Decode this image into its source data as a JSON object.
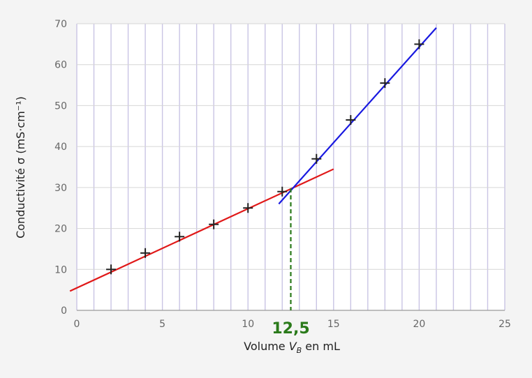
{
  "chart_data": {
    "type": "scatter",
    "title": "",
    "xlabel": "Volume V_B en mL",
    "xlabel_parts": {
      "main": "Volume ",
      "var": "V",
      "sub": "B",
      "tail": " en mL"
    },
    "ylabel": "Conductivité σ (mS·cm⁻¹)",
    "xlim": [
      0,
      25
    ],
    "ylim": [
      0,
      70
    ],
    "x_ticks": [
      0,
      5,
      10,
      15,
      20,
      25
    ],
    "y_ticks": [
      0,
      10,
      20,
      30,
      40,
      50,
      60,
      70
    ],
    "grid": "vertical every 1 mL, horizontal every 10 mS·cm⁻¹",
    "points": {
      "x": [
        2,
        4,
        6,
        8,
        10,
        12,
        14,
        16,
        18,
        20
      ],
      "y": [
        10,
        14,
        18,
        21,
        25,
        29,
        37,
        46.5,
        55.5,
        65
      ],
      "marker": "plus",
      "color": "#222222"
    },
    "fit_lines": [
      {
        "color": "#e01818",
        "x": [
          -0.4,
          15
        ],
        "y": [
          4.7,
          34.5
        ]
      },
      {
        "color": "#1818e0",
        "x": [
          11.8,
          21
        ],
        "y": [
          26,
          69
        ]
      }
    ],
    "annotation": {
      "label": "12,5",
      "x": 12.5,
      "y": 29.8,
      "color": "#2a7a1a",
      "style": "dashed vertical line from intersection to x-axis"
    }
  }
}
